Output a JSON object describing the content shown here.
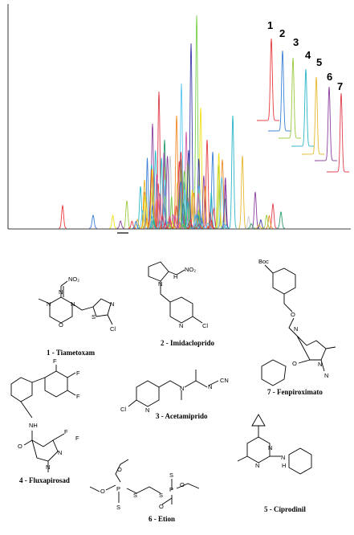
{
  "chromatogram": {
    "peak_labels": [
      "1",
      "2",
      "3",
      "4",
      "5",
      "6",
      "7"
    ],
    "colors": [
      "#e8383b",
      "#3a7fd5",
      "#9bcb3c",
      "#2bb5c7",
      "#e6b82a",
      "#8b3fa0",
      "#e03a4a",
      "#2a9a6a",
      "#c7c7c7",
      "#f08a24",
      "#5ac8f0",
      "#d45aa8",
      "#3a3aa8",
      "#7ad04a",
      "#f0e01a"
    ]
  },
  "compounds": [
    {
      "label": "1 - Tiametoxam"
    },
    {
      "label": "2 - Imidacloprido"
    },
    {
      "label": "3 - Acetamiprido"
    },
    {
      "label": "4 - Fluxapirosad"
    },
    {
      "label": "5 - Ciprodinil"
    },
    {
      "label": "6 - Etion"
    },
    {
      "label": "7 - Fenpiroximato"
    }
  ],
  "atoms": {
    "no2": "NO₂",
    "n": "N",
    "cl": "Cl",
    "s": "S",
    "o": "O",
    "h": "H",
    "nh": "NH",
    "cn": "CN",
    "f": "F",
    "p": "P",
    "boc": "Boc",
    "nn": "N"
  }
}
